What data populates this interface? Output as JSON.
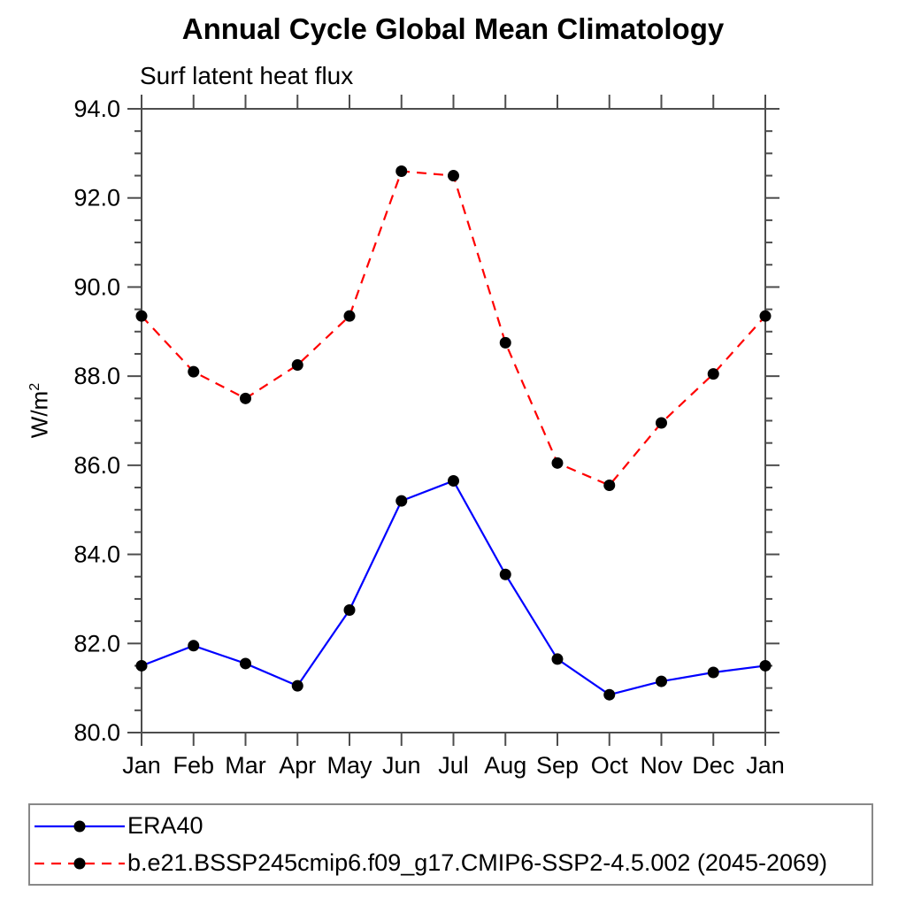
{
  "chart_data": {
    "type": "line",
    "title": "Annual Cycle Global Mean Climatology",
    "subtitle": "Surf latent heat flux",
    "ylabel": "W/m²",
    "xlabel": "",
    "categories": [
      "Jan",
      "Feb",
      "Mar",
      "Apr",
      "May",
      "Jun",
      "Jul",
      "Aug",
      "Sep",
      "Oct",
      "Nov",
      "Dec",
      "Jan"
    ],
    "ylim": [
      80.0,
      94.0
    ],
    "ytick_major": 2.0,
    "ytick_minor": 0.5,
    "ytick_label_format": "one-decimal",
    "grid": false,
    "legend_position": "bottom-left-box",
    "marker": "filled-black-circle",
    "series": [
      {
        "name": "ERA40",
        "color": "#0000ff",
        "line_style": "solid",
        "values": [
          81.5,
          81.95,
          81.55,
          81.05,
          82.75,
          85.2,
          85.65,
          83.55,
          81.65,
          80.85,
          81.15,
          81.35,
          81.5
        ]
      },
      {
        "name": "b.e21.BSSP245cmip6.f09_g17.CMIP6-SSP2-4.5.002 (2045-2069)",
        "color": "#ff0000",
        "line_style": "dashed",
        "values": [
          89.35,
          88.1,
          87.5,
          88.25,
          89.35,
          92.6,
          92.5,
          88.75,
          86.05,
          85.55,
          86.95,
          88.05,
          89.35
        ]
      }
    ],
    "axis_color": "#4d4d4d",
    "marker_color": "#000000"
  }
}
